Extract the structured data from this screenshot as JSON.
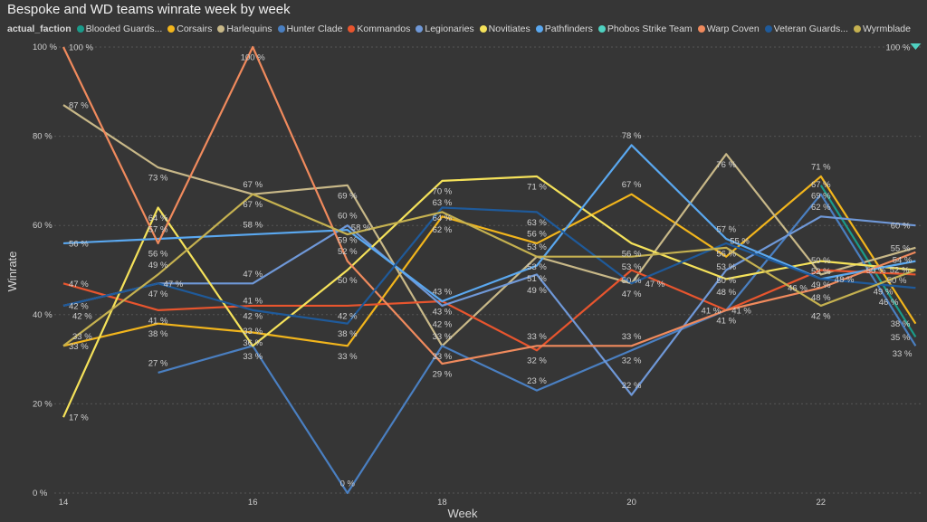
{
  "chart_data": {
    "type": "line",
    "title": "Bespoke and WD teams winrate week by week",
    "legend_title": "actual_faction",
    "legend_placement": "top-left",
    "xlabel": "Week",
    "ylabel": "Winrate",
    "x": [
      14,
      15,
      16,
      17,
      18,
      19,
      20,
      21,
      22,
      23
    ],
    "x_ticks": [
      "14",
      "16",
      "18",
      "20",
      "22"
    ],
    "x_tick_values": [
      14,
      16,
      18,
      20,
      22
    ],
    "y_ticks": [
      "0 %",
      "20 %",
      "40 %",
      "60 %",
      "80 %",
      "100 %"
    ],
    "y_tick_values": [
      0,
      20,
      40,
      60,
      80,
      100
    ],
    "ylim": [
      0,
      100
    ],
    "grid": true,
    "value_suffix": " %",
    "series": [
      {
        "name": "Blooded Guards...",
        "color": "#1a9b8a",
        "values": [
          null,
          null,
          null,
          null,
          null,
          null,
          null,
          null,
          69,
          35
        ]
      },
      {
        "name": "Corsairs",
        "color": "#f2b51c",
        "values": [
          33,
          38,
          36,
          33,
          62,
          56,
          67,
          53,
          71,
          38
        ]
      },
      {
        "name": "Harlequins",
        "color": "#c8b888",
        "values": [
          87,
          73,
          67,
          69,
          33,
          53,
          47,
          76,
          49,
          55
        ]
      },
      {
        "name": "Hunter Clade",
        "color": "#4a7fc1",
        "values": [
          null,
          27,
          33,
          0,
          33,
          23,
          32,
          41,
          67,
          33
        ]
      },
      {
        "name": "Kommandos",
        "color": "#e8552e",
        "values": [
          47,
          41,
          42,
          42,
          43,
          32,
          50,
          41,
          50,
          49
        ]
      },
      {
        "name": "Legionaries",
        "color": "#6f98d8",
        "values": [
          42,
          47,
          47,
          60,
          42,
          49,
          22,
          50,
          62,
          60
        ]
      },
      {
        "name": "Novitiates",
        "color": "#f5e25a",
        "values": [
          17,
          64,
          33,
          50,
          70,
          71,
          56,
          48,
          52,
          50
        ]
      },
      {
        "name": "Pathfinders",
        "color": "#5aa8f0",
        "values": [
          56,
          57,
          58,
          59,
          43,
          51,
          78,
          57,
          48,
          52
        ]
      },
      {
        "name": "Phobos Strike Team",
        "color": "#4fd1c0",
        "values": [
          null,
          null,
          null,
          null,
          null,
          null,
          null,
          null,
          null,
          100
        ]
      },
      {
        "name": "Warp Coven",
        "color": "#f08a5d",
        "values": [
          100,
          56,
          100,
          52,
          29,
          33,
          33,
          41,
          46,
          54
        ]
      },
      {
        "name": "Veteran Guards...",
        "color": "#1f5a9a",
        "values": [
          42,
          47,
          41,
          38,
          64,
          63,
          47,
          56,
          48,
          46
        ]
      },
      {
        "name": "Wyrmblade",
        "color": "#c5b150",
        "values": [
          33,
          49,
          67,
          58,
          63,
          53,
          53,
          55,
          42,
          50
        ]
      }
    ]
  }
}
